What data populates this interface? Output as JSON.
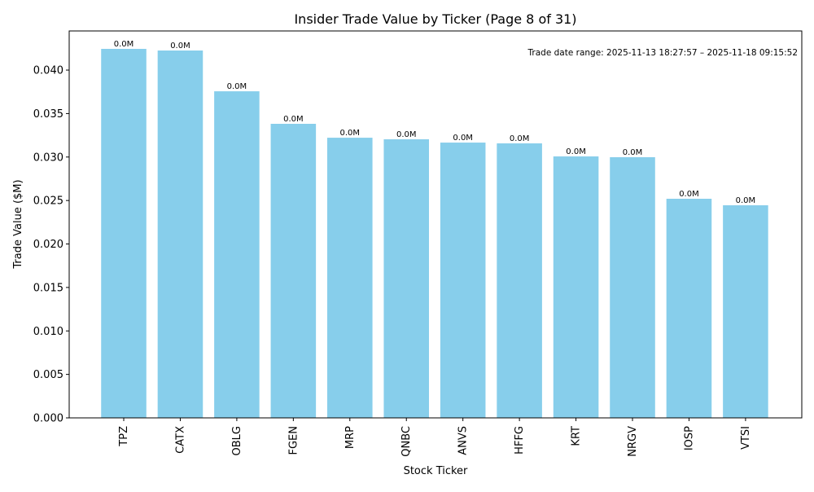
{
  "chart_data": {
    "type": "bar",
    "title": "Insider Trade Value by Ticker (Page 8 of 31)",
    "xlabel": "Stock Ticker",
    "ylabel": "Trade Value ($M)",
    "categories": [
      "TPZ",
      "CATX",
      "OBLG",
      "FGEN",
      "MRP",
      "QNBC",
      "ANVS",
      "HFFG",
      "KRT",
      "NRGV",
      "IOSP",
      "VTSI"
    ],
    "values": [
      0.04244,
      0.04225,
      0.03756,
      0.03382,
      0.03222,
      0.03204,
      0.03166,
      0.03157,
      0.03007,
      0.02998,
      0.0252,
      0.02445
    ],
    "data_labels": [
      "0.0M",
      "0.0M",
      "0.0M",
      "0.0M",
      "0.0M",
      "0.0M",
      "0.0M",
      "0.0M",
      "0.0M",
      "0.0M",
      "0.0M",
      "0.0M"
    ],
    "ylim": [
      0,
      0.0445
    ],
    "yticks": [
      "0.000",
      "0.005",
      "0.010",
      "0.015",
      "0.020",
      "0.025",
      "0.030",
      "0.035",
      "0.040"
    ],
    "annotation": "Trade date range: 2025-11-13 18:27:57 – 2025-11-18 09:15:52",
    "bar_color": "#87CEEB",
    "grid": false,
    "legend": "none"
  }
}
